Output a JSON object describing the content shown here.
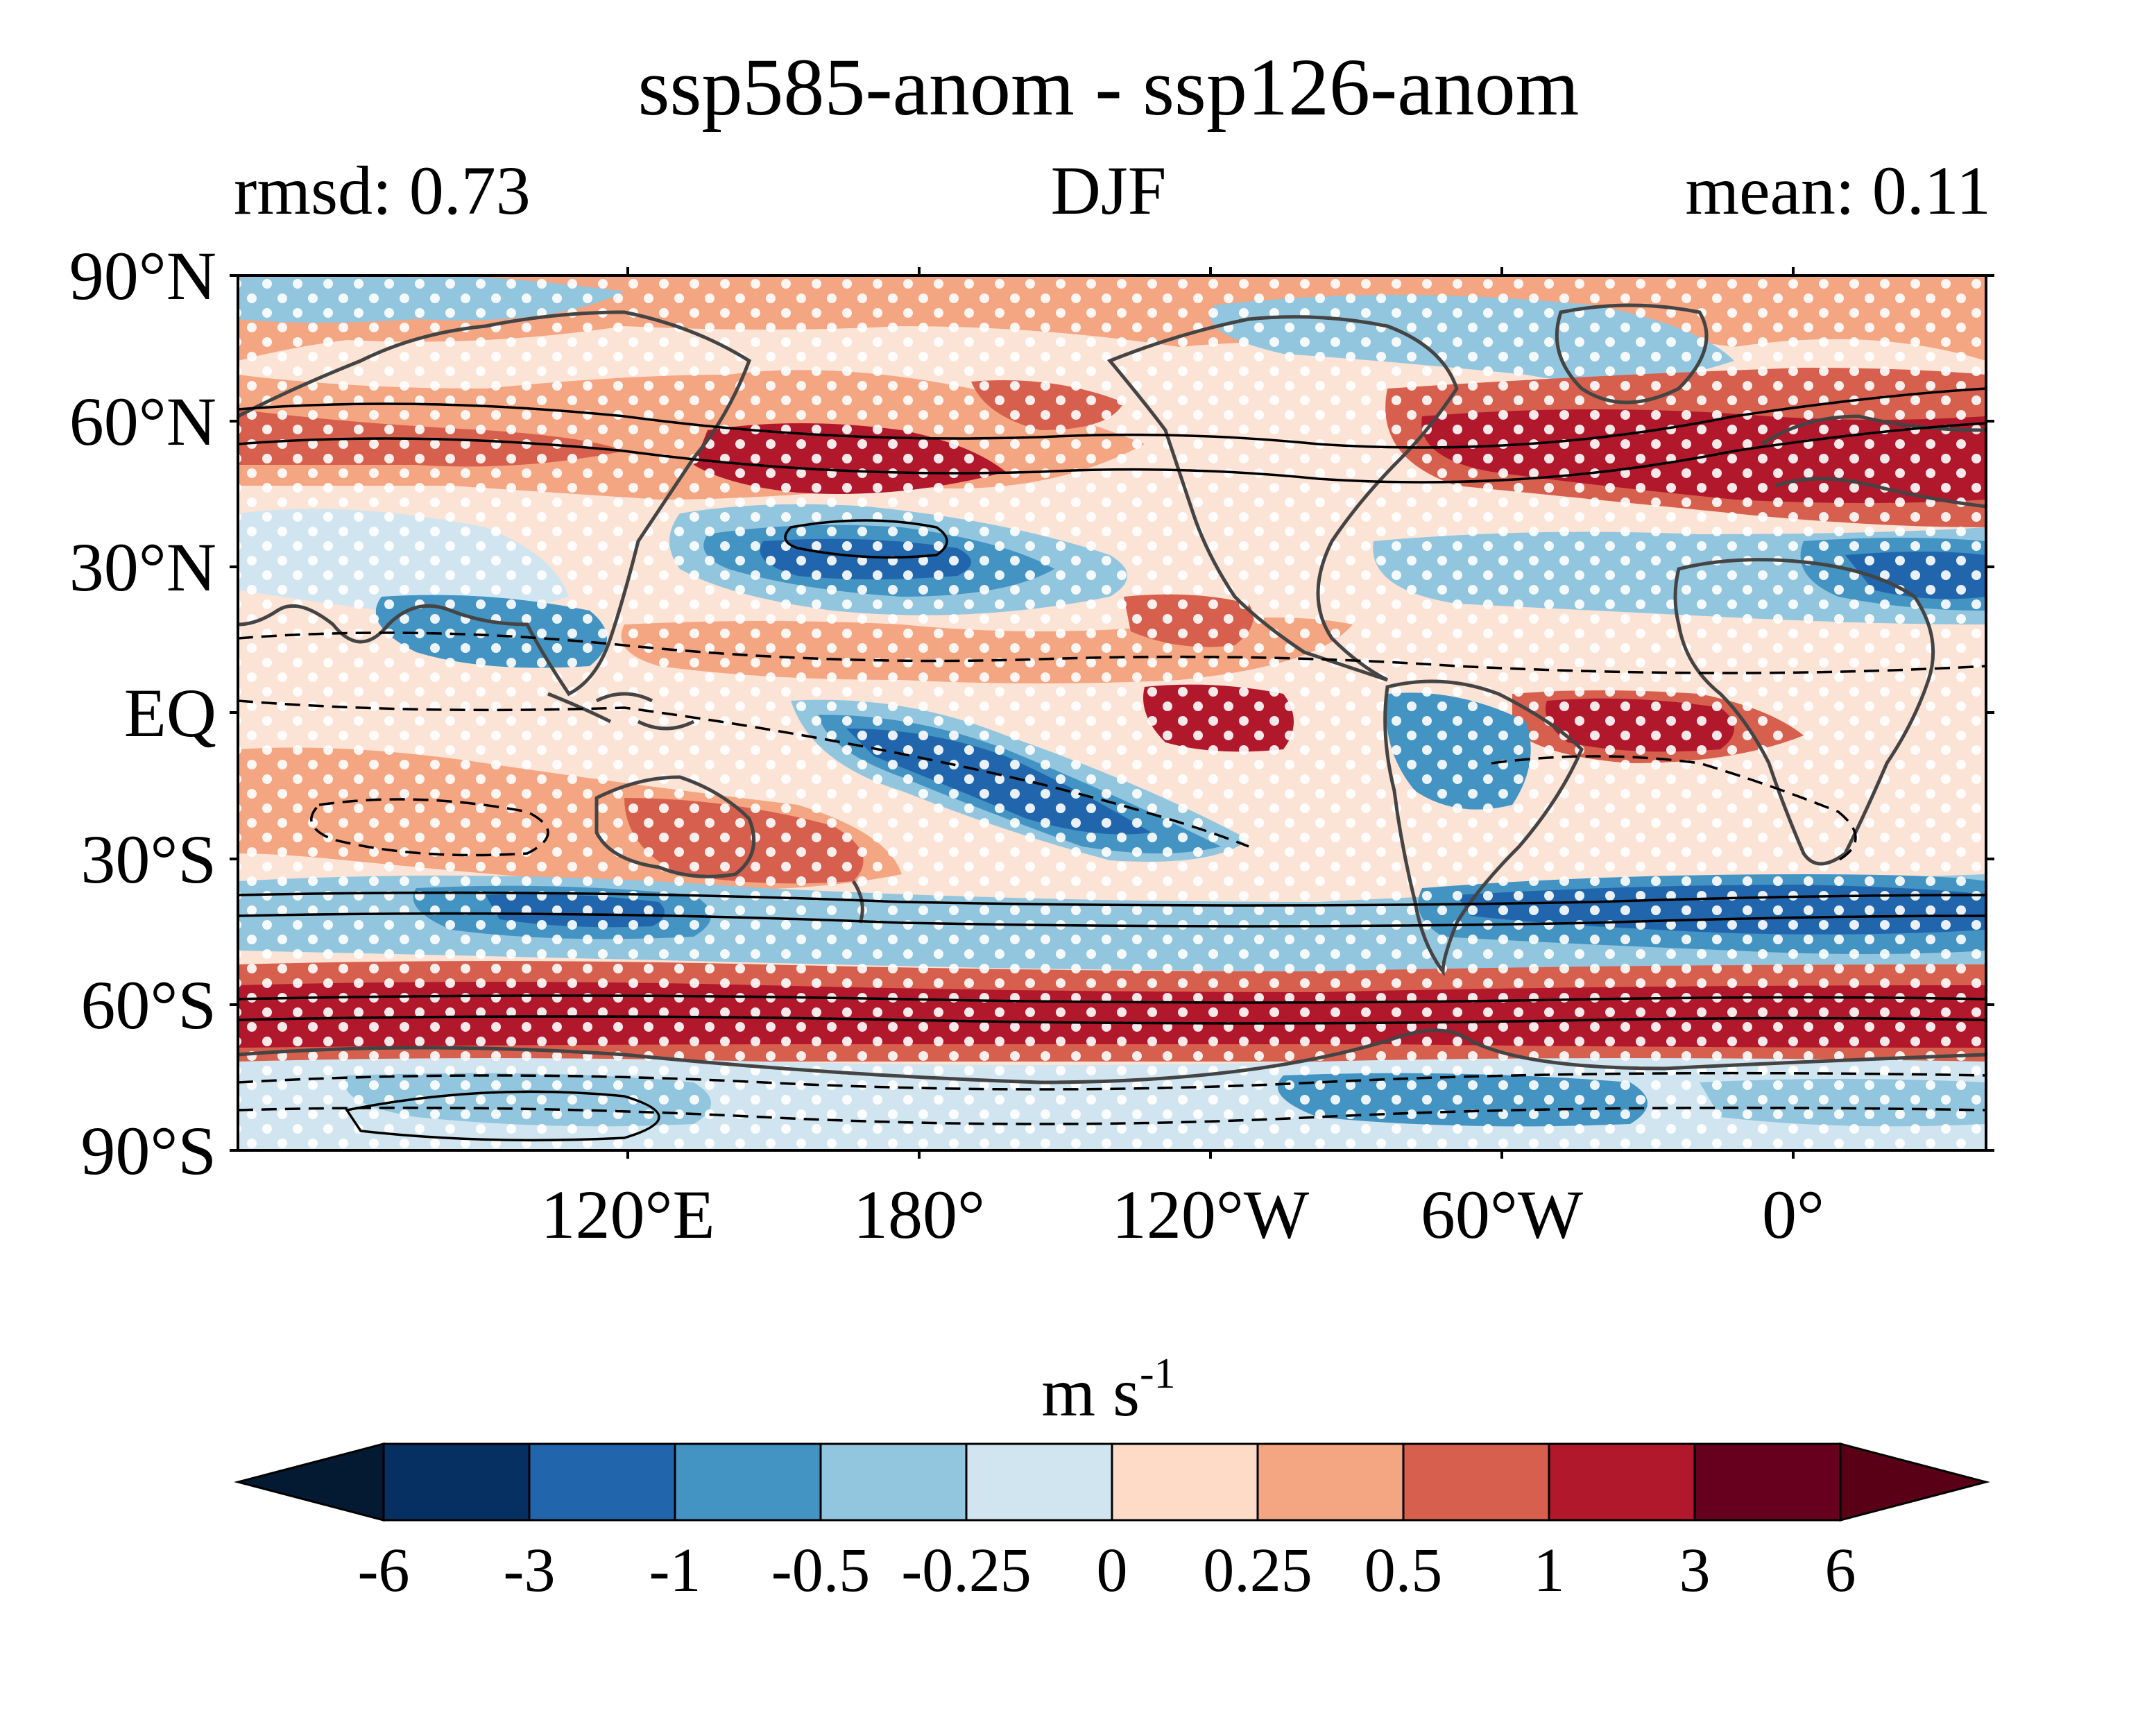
{
  "header": {
    "title": "ssp585-anom - ssp126-anom",
    "left": "rmsd: 0.73",
    "center": "DJF",
    "right": "mean: 0.11"
  },
  "map": {
    "lat_ticks": [
      "90°N",
      "60°N",
      "30°N",
      "EQ",
      "30°S",
      "60°S",
      "90°S"
    ],
    "lon_ticks": [
      "120°E",
      "180°",
      "120°W",
      "60°W",
      "0°"
    ],
    "stippling": "white-dots",
    "contours": "black solid and dashed lines",
    "coastlines": "dark-grey"
  },
  "colorbar": {
    "unit": "m s",
    "unit_sup": "-1",
    "boundaries": [
      "-6",
      "-3",
      "-1",
      "-0.5",
      "-0.25",
      "0",
      "0.25",
      "0.5",
      "1",
      "3",
      "6"
    ],
    "colors": [
      "#053061",
      "#2166ac",
      "#4393c3",
      "#92c5de",
      "#d1e5f0",
      "#fddbc7",
      "#f4a582",
      "#d6604d",
      "#b2182b",
      "#67001f"
    ],
    "extend_low_color": "#041a33",
    "extend_high_color": "#5a0016"
  }
}
